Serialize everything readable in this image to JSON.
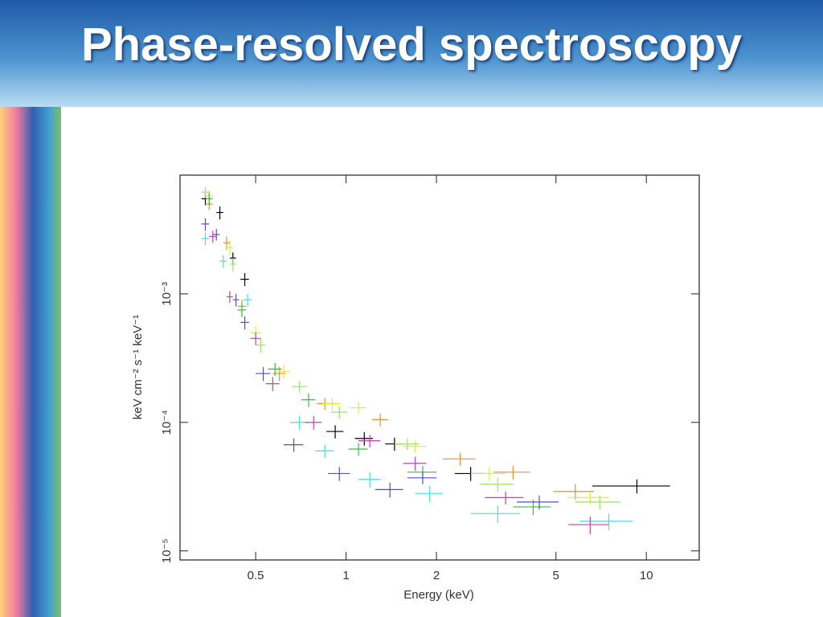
{
  "title": "Phase-resolved spectroscopy",
  "chart_data": {
    "type": "errorbar",
    "xlabel": "Energy (keV)",
    "ylabel": "keV cm⁻² s⁻¹ keV⁻¹",
    "xscale": "log",
    "yscale": "log",
    "xlim": [
      0.28,
      15
    ],
    "ylim": [
      8.5e-06,
      0.0084
    ],
    "xticks": [
      0.5,
      1,
      2,
      5,
      10
    ],
    "yticks": [
      {
        "value": 1e-05,
        "label": "10⁻⁵"
      },
      {
        "value": 0.0001,
        "label": "10⁻⁴"
      },
      {
        "value": 0.001,
        "label": "10⁻³"
      }
    ],
    "series": [
      {
        "color": "#000000",
        "x": [
          0.34,
          0.38,
          0.42,
          0.46,
          0.92,
          1.15,
          1.45,
          2.6,
          9.3
        ],
        "values": [
          0.0055,
          0.0043,
          0.0019,
          0.0013,
          8.5e-05,
          7.5e-05,
          6.8e-05,
          4e-05,
          3.2e-05
        ],
        "xerr": [
          0.01,
          0.01,
          0.01,
          0.015,
          0.06,
          0.08,
          0.1,
          0.3,
          2.7
        ],
        "yerr": [
          0.0006,
          0.0005,
          0.0002,
          0.00015,
          1e-05,
          9e-06,
          8e-06,
          5e-06,
          4e-06
        ]
      },
      {
        "color": "#e0922e",
        "x": [
          0.35,
          0.4,
          0.45,
          0.6,
          0.85,
          1.3,
          2.4,
          3.6,
          5.8
        ],
        "values": [
          0.005,
          0.0025,
          0.0008,
          0.00024,
          0.00014,
          0.000105,
          5.2e-05,
          4.1e-05,
          2.9e-05
        ],
        "xerr": [
          0.01,
          0.01,
          0.015,
          0.03,
          0.05,
          0.08,
          0.3,
          0.5,
          0.9
        ],
        "yerr": [
          0.0005,
          0.0003,
          0.0001,
          3e-05,
          1.5e-05,
          1.2e-05,
          6e-06,
          5e-06,
          4e-06
        ]
      },
      {
        "color": "#e8e830",
        "x": [
          0.35,
          0.41,
          0.5,
          0.62,
          0.9,
          1.1,
          1.7,
          3,
          6.5
        ],
        "values": [
          0.0058,
          0.0023,
          0.0005,
          0.00025,
          0.00014,
          0.00013,
          6.5e-05,
          4e-05,
          2.6e-05
        ],
        "xerr": [
          0.01,
          0.01,
          0.02,
          0.03,
          0.06,
          0.07,
          0.15,
          0.4,
          1
        ],
        "yerr": [
          0.0006,
          0.0003,
          6e-05,
          3e-05,
          1.5e-05,
          1.4e-05,
          7e-06,
          5e-06,
          3e-06
        ]
      },
      {
        "color": "#a0e060",
        "x": [
          0.34,
          0.42,
          0.52,
          0.7,
          0.95,
          1.6,
          3.2,
          7
        ],
        "values": [
          0.0062,
          0.0017,
          0.0004,
          0.00019,
          0.00012,
          6.8e-05,
          3.3e-05,
          2.4e-05
        ],
        "xerr": [
          0.01,
          0.01,
          0.02,
          0.04,
          0.06,
          0.15,
          0.4,
          1.2
        ],
        "yerr": [
          0.0006,
          0.0002,
          5e-05,
          2e-05,
          1.3e-05,
          7e-06,
          4e-06,
          3e-06
        ]
      },
      {
        "color": "#30c040",
        "x": [
          0.35,
          0.45,
          0.58,
          0.75,
          1.1,
          1.8,
          4.2
        ],
        "values": [
          0.0055,
          0.00075,
          0.00026,
          0.00015,
          6.2e-05,
          4.1e-05,
          2.2e-05
        ],
        "xerr": [
          0.01,
          0.015,
          0.03,
          0.04,
          0.08,
          0.2,
          0.6
        ],
        "yerr": [
          0.0006,
          9e-05,
          3e-05,
          1.8e-05,
          7e-06,
          5e-06,
          3e-06
        ]
      },
      {
        "color": "#40e0e0",
        "x": [
          0.34,
          0.39,
          0.47,
          0.7,
          0.85,
          1.2,
          1.9,
          3.2,
          7.5
        ],
        "values": [
          0.0027,
          0.0018,
          0.0009,
          0.0001,
          6e-05,
          3.6e-05,
          2.8e-05,
          1.95e-05,
          1.7e-05
        ],
        "xerr": [
          0.01,
          0.01,
          0.015,
          0.05,
          0.06,
          0.1,
          0.2,
          0.6,
          1.5
        ],
        "yerr": [
          0.0003,
          0.0002,
          0.0001,
          1.2e-05,
          7e-06,
          5e-06,
          4e-06,
          3e-06,
          2.5e-06
        ]
      },
      {
        "color": "#5050c0",
        "x": [
          0.34,
          0.37,
          0.43,
          0.46,
          0.53,
          0.67,
          0.95,
          1.4,
          1.8,
          4.4
        ],
        "values": [
          0.0035,
          0.0029,
          0.0009,
          0.0006,
          0.00024,
          6.7e-05,
          4e-05,
          3e-05,
          3.7e-05,
          2.4e-05
        ],
        "xerr": [
          0.01,
          0.01,
          0.01,
          0.015,
          0.03,
          0.05,
          0.08,
          0.15,
          0.2,
          0.7
        ],
        "yerr": [
          0.0004,
          0.0003,
          0.0001,
          7e-05,
          3e-05,
          8e-06,
          5e-06,
          4e-06,
          4e-06,
          3e-06
        ]
      },
      {
        "color": "#c040c0",
        "x": [
          0.36,
          0.41,
          0.5,
          0.57,
          0.78,
          1.2,
          1.7,
          3.4,
          6.5
        ],
        "values": [
          0.0028,
          0.00095,
          0.00045,
          0.0002,
          0.0001,
          7.2e-05,
          4.8e-05,
          2.6e-05,
          1.6e-05
        ],
        "xerr": [
          0.01,
          0.01,
          0.02,
          0.03,
          0.05,
          0.1,
          0.15,
          0.5,
          1
        ],
        "yerr": [
          0.0003,
          0.0001,
          5e-05,
          2.5e-05,
          1.2e-05,
          8e-06,
          6e-06,
          3e-06,
          2.5e-06
        ]
      }
    ]
  }
}
